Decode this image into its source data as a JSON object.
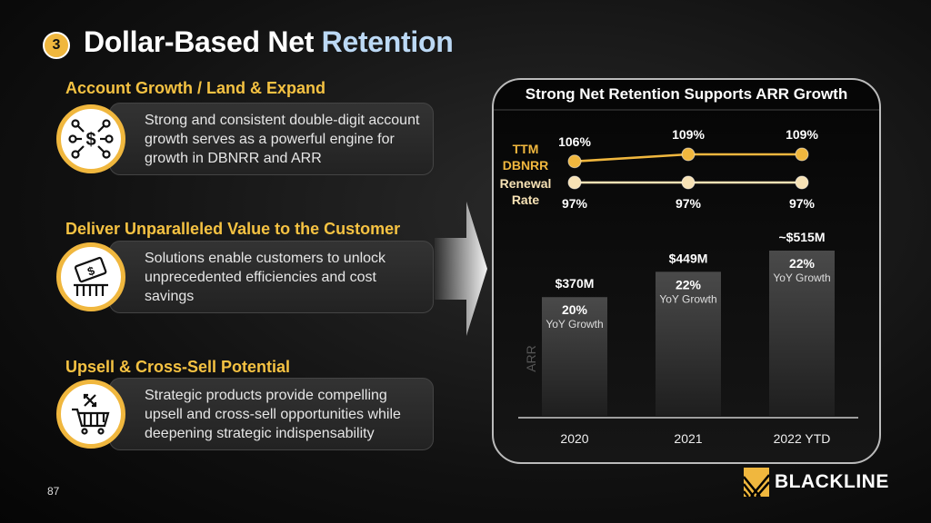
{
  "slide": {
    "number_badge": "3",
    "title_main": "Dollar-Based Net ",
    "title_accent": "Retention",
    "page_number": "87",
    "logo_text": "BLACKLINE",
    "colors": {
      "gold": "#f0b73e",
      "accent_blue": "#bcd9f5",
      "renewal": "#f7e2b5"
    }
  },
  "sections": [
    {
      "heading": "Account Growth / Land & Expand",
      "text": "Strong and consistent double-digit account growth serves as a powerful engine for growth in DBNRR and ARR",
      "icon": "network-dollar-icon"
    },
    {
      "heading": "Deliver Unparalleled Value to the Customer",
      "text": "Solutions enable customers to unlock unprecedented efficiencies and cost savings",
      "icon": "money-hand-icon"
    },
    {
      "heading": "Upsell & Cross-Sell Potential",
      "text": "Strategic products provide compelling upsell and cross-sell opportunities while deepening strategic indispensability",
      "icon": "shopping-cart-icon"
    }
  ],
  "chart_data": {
    "type": "bar",
    "title": "Strong Net Retention Supports ARR Growth",
    "categories": [
      "2020",
      "2021",
      "2022 YTD"
    ],
    "ylabel": "ARR",
    "ylim": [
      0,
      515
    ],
    "grid": false,
    "series": [
      {
        "name": "ARR",
        "values": [
          370,
          449,
          515
        ],
        "labels": [
          "$370M",
          "$449M",
          "~$515M"
        ],
        "growth": [
          "20%",
          "22%",
          "22%"
        ],
        "growth_label": "YoY Growth"
      }
    ],
    "lines": [
      {
        "name": "TTM DBNRR",
        "name_lines": [
          "TTM",
          "DBNRR"
        ],
        "values": [
          106,
          109,
          109
        ],
        "labels": [
          "106%",
          "109%",
          "109%"
        ],
        "color": "#f0b73e"
      },
      {
        "name": "Renewal Rate",
        "name_lines": [
          "Renewal",
          "Rate"
        ],
        "values": [
          97,
          97,
          97
        ],
        "labels": [
          "97%",
          "97%",
          "97%"
        ],
        "color": "#f7e2b5"
      }
    ]
  }
}
